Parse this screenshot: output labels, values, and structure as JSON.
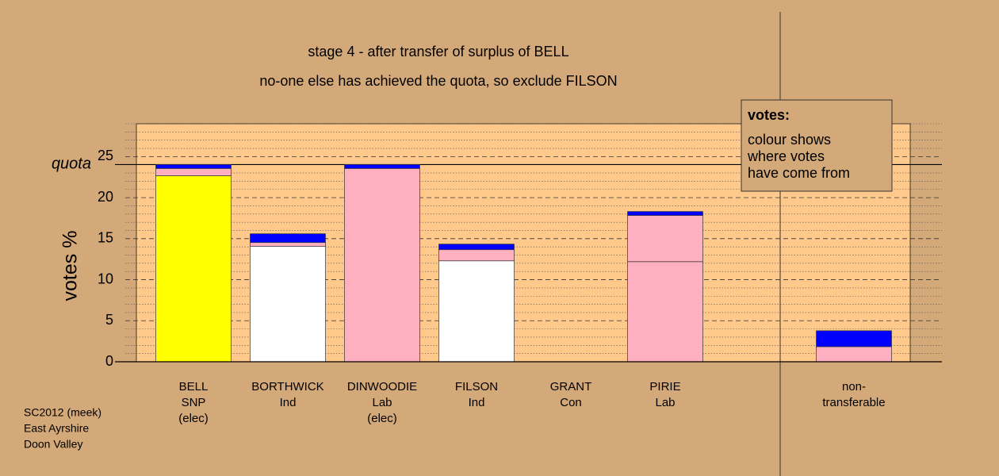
{
  "chart_data": {
    "type": "stacked_bar",
    "title": "stage 4 - after transfer of surplus of BELL",
    "subtitle": "no-one else has achieved the quota, so exclude FILSON",
    "y_label": "votes %",
    "categories": [
      [
        "BELL",
        "SNP",
        "(elec)"
      ],
      [
        "BORTHWICK",
        "Ind"
      ],
      [
        "DINWOODIE",
        "Lab",
        "(elec)"
      ],
      [
        "FILSON",
        "Ind"
      ],
      [
        "GRANT",
        "Con"
      ],
      [
        "PIRIE",
        "Lab"
      ],
      null,
      [
        "non-",
        "transferable"
      ]
    ],
    "series": [
      {
        "color": "#ffff00",
        "values": [
          22.67,
          0,
          0,
          0,
          0,
          0,
          null,
          0
        ]
      },
      {
        "color": "#ffffff",
        "values": [
          0,
          14.05,
          0,
          12.3,
          0,
          0,
          null,
          0
        ]
      },
      {
        "color": "#ffb0c0",
        "values": [
          0,
          0,
          23.55,
          0,
          0,
          12.2,
          null,
          0
        ]
      },
      {
        "color": "#ffb0c0",
        "values": [
          0.88,
          0.48,
          0,
          1.36,
          0,
          5.63,
          null,
          1.84
        ]
      },
      {
        "color": "#0000ff",
        "values": [
          0.48,
          1.07,
          0.48,
          0.68,
          0,
          0.48,
          null,
          1.94
        ]
      }
    ],
    "ylim": [
      0,
      29
    ],
    "yticks": [
      0,
      5,
      10,
      15,
      20,
      25
    ],
    "minor_yticks": [
      1,
      2,
      3,
      4,
      6,
      7,
      8,
      9,
      11,
      12,
      13,
      14,
      16,
      17,
      18,
      19,
      21,
      22,
      23,
      24,
      26,
      27,
      28,
      29
    ],
    "quota": {
      "label": "quota",
      "value": 24.03
    },
    "note": {
      "heading": "votes:",
      "lines": [
        "colour shows",
        "where votes",
        "have come from"
      ]
    },
    "footer": [
      "SC2012 (meek)",
      "East Ayrshire",
      "Doon Valley"
    ]
  }
}
